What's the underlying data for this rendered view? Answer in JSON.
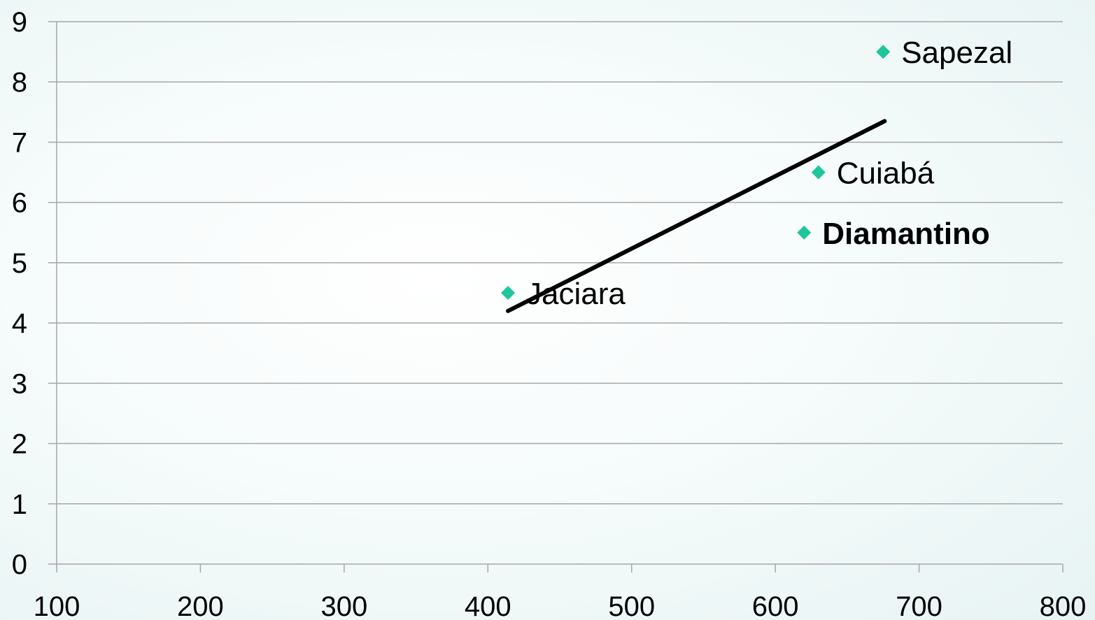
{
  "chart_data": {
    "type": "scatter",
    "title": "",
    "xlabel": "",
    "ylabel": "",
    "xlim": [
      100,
      800
    ],
    "ylim": [
      0,
      9
    ],
    "x_ticks": [
      100,
      200,
      300,
      400,
      500,
      600,
      700,
      800
    ],
    "y_ticks": [
      0,
      1,
      2,
      3,
      4,
      5,
      6,
      7,
      8,
      9
    ],
    "grid": {
      "horizontal": true,
      "vertical": false
    },
    "legend": "none",
    "points": [
      {
        "label": "Jaciara",
        "x": 414,
        "y": 4.5,
        "bold": false
      },
      {
        "label": "Diamantino",
        "x": 620,
        "y": 5.5,
        "bold": true
      },
      {
        "label": "Cuiabá",
        "x": 630,
        "y": 6.5,
        "bold": false
      },
      {
        "label": "Sapezal",
        "x": 675,
        "y": 8.5,
        "bold": false
      }
    ],
    "trendline": {
      "x": [
        414,
        676
      ],
      "y": [
        4.2,
        7.35
      ]
    },
    "colors": {
      "marker": "#1ec69c",
      "trendline": "#000000",
      "gridline": "#a6a6a6",
      "axis": "#a6a6a6"
    }
  }
}
